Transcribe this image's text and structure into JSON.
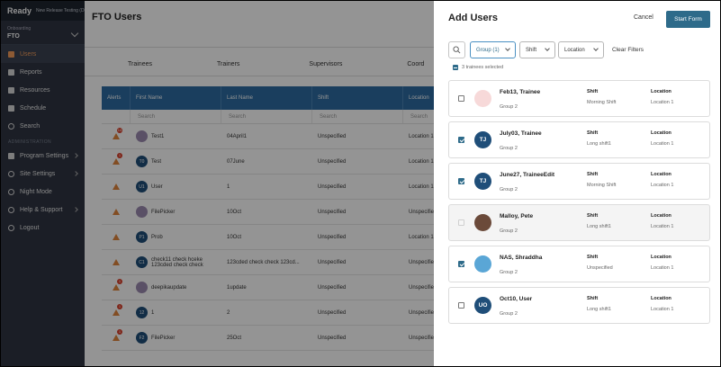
{
  "app": {
    "name": "Ready",
    "environment": "New Release Testing (DMS)"
  },
  "org": {
    "label": "Onboarding",
    "value": "FTO"
  },
  "sidebar": {
    "items": [
      {
        "label": "Users",
        "icon": "users-icon",
        "active": true
      },
      {
        "label": "Reports",
        "icon": "chart-icon"
      },
      {
        "label": "Resources",
        "icon": "folder-icon"
      },
      {
        "label": "Schedule",
        "icon": "calendar-icon"
      },
      {
        "label": "Search",
        "icon": "search-icon"
      }
    ],
    "admin_section_label": "ADMINISTRATION",
    "admin_items": [
      {
        "label": "Program Settings",
        "icon": "sliders-icon"
      },
      {
        "label": "Site Settings",
        "icon": "gear-icon"
      },
      {
        "label": "Night Mode",
        "icon": "moon-icon"
      },
      {
        "label": "Help & Support",
        "icon": "help-icon"
      },
      {
        "label": "Logout",
        "icon": "power-icon"
      }
    ]
  },
  "main": {
    "title": "FTO Users",
    "role_tabs": [
      "Trainees",
      "Trainers",
      "Supervisors",
      "Coord"
    ],
    "columns": [
      "Alerts",
      "First Name",
      "Last Name",
      "Shift",
      "Location"
    ],
    "search_placeholder": "Search",
    "rows": [
      {
        "alerts": "14",
        "initials": "",
        "first": "Test1",
        "last": "04April1",
        "shift": "Unspecified",
        "location": "Location 1"
      },
      {
        "alerts": "1",
        "initials": "T0",
        "first": "Test",
        "last": "07June",
        "shift": "Unspecified",
        "location": "Location 1"
      },
      {
        "alerts": "",
        "initials": "U1",
        "first": "User",
        "last": "1",
        "shift": "Unspecified",
        "location": "Location 1"
      },
      {
        "alerts": "",
        "initials": "",
        "first": "FilePicker",
        "last": "10Oct",
        "shift": "Unspecified",
        "location": "Unspecified"
      },
      {
        "alerts": "",
        "initials": "P1",
        "first": "Prob",
        "last": "10Oct",
        "shift": "Unspecified",
        "location": "Location 1"
      },
      {
        "alerts": "",
        "initials": "C1",
        "first": "check11 check hceke 123cded check check",
        "last": "123cded check check 123cd...",
        "shift": "Unspecified",
        "location": "Unspecified"
      },
      {
        "alerts": "1",
        "initials": "",
        "first": "deepikaupdate",
        "last": "1update",
        "shift": "Unspecified",
        "location": "Unspecified"
      },
      {
        "alerts": "1",
        "initials": "12",
        "first": "1",
        "last": "2",
        "shift": "Unspecified",
        "location": "Unspecified"
      },
      {
        "alerts": "1",
        "initials": "F2",
        "first": "FilePicker",
        "last": "25Oct",
        "shift": "Unspecified",
        "location": "Unspecified"
      }
    ]
  },
  "drawer": {
    "title": "Add Users",
    "cancel_label": "Cancel",
    "start_label": "Start Form",
    "filters": {
      "group": "Group (1)",
      "shift": "Shift",
      "location": "Location"
    },
    "clear_filters_label": "Clear Filters",
    "selected_text": "3 trainees selected",
    "shift_label": "Shift",
    "location_label": "Location",
    "cards": [
      {
        "name": "Feb13, Trainee",
        "group": "Group 2",
        "shift": "Morning Shift",
        "location": "Location 1",
        "checked": false,
        "disabled": false,
        "avatar": "photo",
        "initials": ""
      },
      {
        "name": "July03, Trainee",
        "group": "Group 2",
        "shift": "Long shift1",
        "location": "Location 1",
        "checked": true,
        "disabled": false,
        "avatar": "initials",
        "initials": "TJ"
      },
      {
        "name": "June27, TraineeEdit",
        "group": "Group 2",
        "shift": "Morning Shift",
        "location": "Location 1",
        "checked": true,
        "disabled": false,
        "avatar": "initials",
        "initials": "TJ"
      },
      {
        "name": "Malloy, Pete",
        "group": "Group 2",
        "shift": "Long shift1",
        "location": "Location 1",
        "checked": false,
        "disabled": true,
        "avatar": "photo",
        "initials": ""
      },
      {
        "name": "NAS, Shraddha",
        "group": "Group 2",
        "shift": "Unspecified",
        "location": "Location 1",
        "checked": true,
        "disabled": false,
        "avatar": "photo",
        "initials": ""
      },
      {
        "name": "Oct10, User",
        "group": "Group 2",
        "shift": "Long shift1",
        "location": "Location 1",
        "checked": false,
        "disabled": false,
        "avatar": "initials",
        "initials": "UO"
      }
    ]
  },
  "colors": {
    "primary": "#2e6b8a",
    "sidebar": "#2f3542",
    "accent": "#f39c5a",
    "table_header": "#2d6ca2",
    "alert": "#e1863d"
  }
}
